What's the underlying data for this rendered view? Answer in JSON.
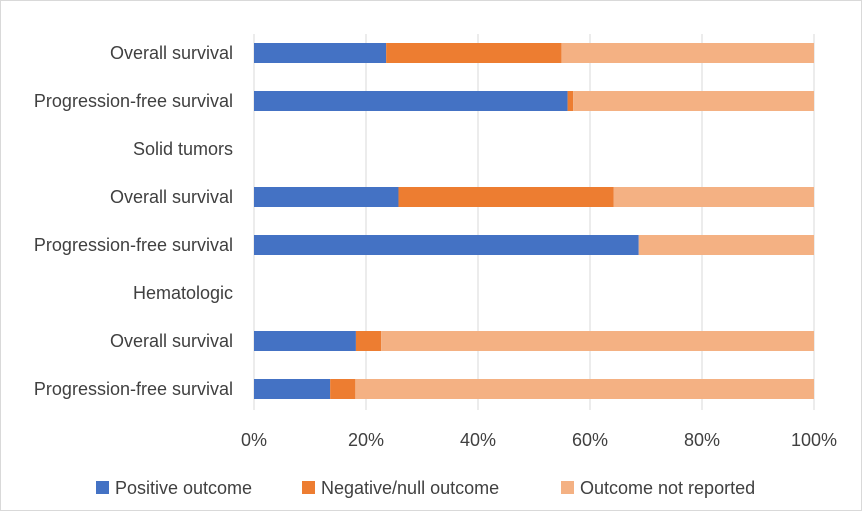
{
  "chart_data": {
    "type": "bar",
    "orientation": "horizontal",
    "stacked": "percent",
    "categories": [
      "Overall survival",
      "Progression-free survival",
      "Solid tumors",
      "Overall survival",
      "Progression-free survival",
      "Hematologic",
      "Overall survival",
      "Progression-free survival"
    ],
    "series": [
      {
        "name": "Positive outcome",
        "color": "#4472c4",
        "values": [
          23.6,
          56.0,
          null,
          25.8,
          68.7,
          null,
          18.2,
          13.6
        ]
      },
      {
        "name": "Negative/null outcome",
        "color": "#ed7d31",
        "values": [
          31.3,
          1.0,
          null,
          38.4,
          0,
          null,
          4.5,
          4.5
        ]
      },
      {
        "name": "Outcome not reported",
        "color": "#f4b183",
        "values": [
          45.1,
          43.0,
          null,
          35.8,
          31.3,
          null,
          77.3,
          81.9
        ]
      }
    ],
    "xlim": [
      0,
      100
    ],
    "xticks": [
      "0%",
      "20%",
      "40%",
      "60%",
      "80%",
      "100%"
    ],
    "grid": true,
    "legend_position": "bottom"
  }
}
